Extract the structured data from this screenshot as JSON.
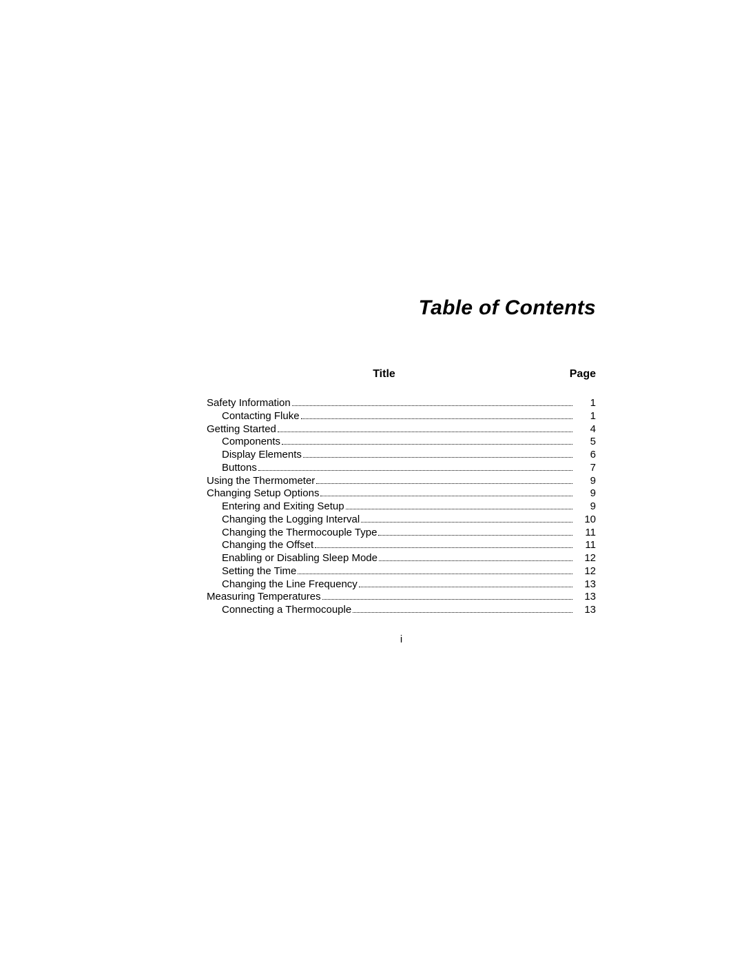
{
  "heading": "Table of Contents",
  "column_title_label": "Title",
  "column_page_label": "Page",
  "footer": "i",
  "entries": [
    {
      "label": "Safety Information",
      "page": "1",
      "indent": 0
    },
    {
      "label": "Contacting Fluke",
      "page": "1",
      "indent": 1
    },
    {
      "label": "Getting Started",
      "page": "4",
      "indent": 0
    },
    {
      "label": "Components",
      "page": "5",
      "indent": 1
    },
    {
      "label": "Display Elements",
      "page": "6",
      "indent": 1
    },
    {
      "label": "Buttons",
      "page": "7",
      "indent": 1
    },
    {
      "label": "Using the Thermometer",
      "page": "9",
      "indent": 0
    },
    {
      "label": "Changing Setup Options",
      "page": "9",
      "indent": 0
    },
    {
      "label": "Entering and Exiting Setup",
      "page": "9",
      "indent": 1
    },
    {
      "label": "Changing the Logging Interval",
      "page": "10",
      "indent": 1
    },
    {
      "label": "Changing the Thermocouple Type",
      "page": "11",
      "indent": 1
    },
    {
      "label": "Changing the Offset",
      "page": "11",
      "indent": 1
    },
    {
      "label": "Enabling or Disabling Sleep Mode",
      "page": "12",
      "indent": 1
    },
    {
      "label": "Setting the Time",
      "page": "12",
      "indent": 1
    },
    {
      "label": "Changing the Line Frequency",
      "page": "13",
      "indent": 1
    },
    {
      "label": "Measuring Temperatures",
      "page": "13",
      "indent": 0
    },
    {
      "label": "Connecting a Thermocouple",
      "page": "13",
      "indent": 1
    }
  ]
}
